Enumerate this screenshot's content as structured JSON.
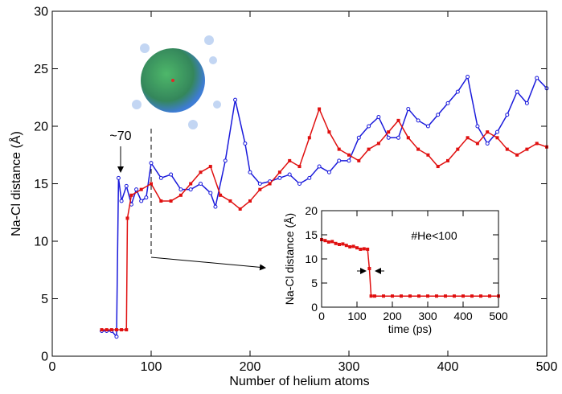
{
  "chart_data": [
    {
      "type": "line",
      "x_label": "Number of helium atoms",
      "y_label": "Na-Cl distance (Å)",
      "annotation": "~70",
      "xlim": [
        0,
        500
      ],
      "xticks": [
        0,
        100,
        200,
        300,
        400,
        500
      ],
      "ylim": [
        0,
        30
      ],
      "yticks": [
        0,
        5,
        10,
        15,
        20,
        25,
        30
      ],
      "series": [
        {
          "color": "#1a1adb",
          "x": [
            50,
            55,
            60,
            65,
            67,
            70,
            75,
            80,
            85,
            90,
            95,
            100,
            110,
            120,
            130,
            140,
            150,
            160,
            165,
            175,
            185,
            195,
            200,
            210,
            220,
            230,
            240,
            250,
            260,
            270,
            280,
            290,
            300,
            310,
            320,
            330,
            340,
            350,
            360,
            370,
            380,
            390,
            400,
            410,
            420,
            430,
            440,
            450,
            460,
            470,
            480,
            490,
            500
          ],
          "values": [
            2.2,
            2.2,
            2.2,
            1.7,
            15.5,
            13.5,
            14.8,
            13.2,
            14.5,
            13.5,
            13.8,
            16.8,
            15.5,
            15.8,
            14.5,
            14.5,
            15.0,
            14.2,
            13.0,
            17.0,
            22.3,
            18.5,
            16.0,
            15.0,
            15.2,
            15.5,
            15.8,
            15.0,
            15.5,
            16.5,
            16.0,
            17.0,
            17.0,
            19.0,
            20.0,
            20.8,
            19.0,
            19.0,
            21.5,
            20.5,
            20.0,
            21.0,
            22.0,
            23.0,
            24.3,
            20.0,
            18.5,
            19.5,
            21.0,
            23.0,
            22.0,
            24.2,
            23.3
          ]
        },
        {
          "color": "#e01010",
          "x": [
            50,
            55,
            60,
            65,
            70,
            75,
            76,
            80,
            90,
            100,
            110,
            120,
            130,
            140,
            150,
            160,
            170,
            180,
            190,
            200,
            210,
            220,
            230,
            240,
            250,
            260,
            270,
            280,
            290,
            300,
            310,
            320,
            330,
            340,
            350,
            360,
            370,
            380,
            390,
            400,
            410,
            420,
            430,
            440,
            450,
            460,
            470,
            480,
            490,
            500
          ],
          "values": [
            2.3,
            2.3,
            2.3,
            2.3,
            2.3,
            2.3,
            12.0,
            14.0,
            14.5,
            15.0,
            13.5,
            13.5,
            14.0,
            15.0,
            16.0,
            16.5,
            14.0,
            13.5,
            12.8,
            13.5,
            14.5,
            15.0,
            16.0,
            17.0,
            16.5,
            19.0,
            21.5,
            19.5,
            18.0,
            17.5,
            17.0,
            18.0,
            18.5,
            19.5,
            20.5,
            19.0,
            18.0,
            17.5,
            16.5,
            17.0,
            18.0,
            19.0,
            18.5,
            19.5,
            19.0,
            18.0,
            17.5,
            18.0,
            18.5,
            18.2
          ]
        }
      ]
    },
    {
      "type": "line",
      "x_label": "time (ps)",
      "y_label": "Na-Cl distance (Å)",
      "annotation": "#He<100",
      "xlim": [
        0,
        500
      ],
      "xticks": [
        0,
        100,
        200,
        300,
        400,
        500
      ],
      "ylim": [
        0,
        20
      ],
      "yticks": [
        0,
        5,
        10,
        15,
        20
      ],
      "series": [
        {
          "color": "#e01010",
          "x": [
            0,
            10,
            20,
            30,
            40,
            50,
            60,
            70,
            80,
            90,
            100,
            110,
            120,
            130,
            135,
            140,
            150,
            175,
            200,
            225,
            250,
            275,
            300,
            325,
            350,
            375,
            400,
            425,
            450,
            475,
            500
          ],
          "values": [
            14.0,
            13.8,
            13.5,
            13.6,
            13.2,
            13.0,
            13.1,
            12.8,
            12.5,
            12.6,
            12.3,
            12.0,
            12.1,
            12.0,
            8.0,
            2.3,
            2.3,
            2.3,
            2.3,
            2.3,
            2.3,
            2.3,
            2.3,
            2.3,
            2.3,
            2.3,
            2.3,
            2.3,
            2.3,
            2.3,
            2.3
          ]
        }
      ]
    }
  ]
}
